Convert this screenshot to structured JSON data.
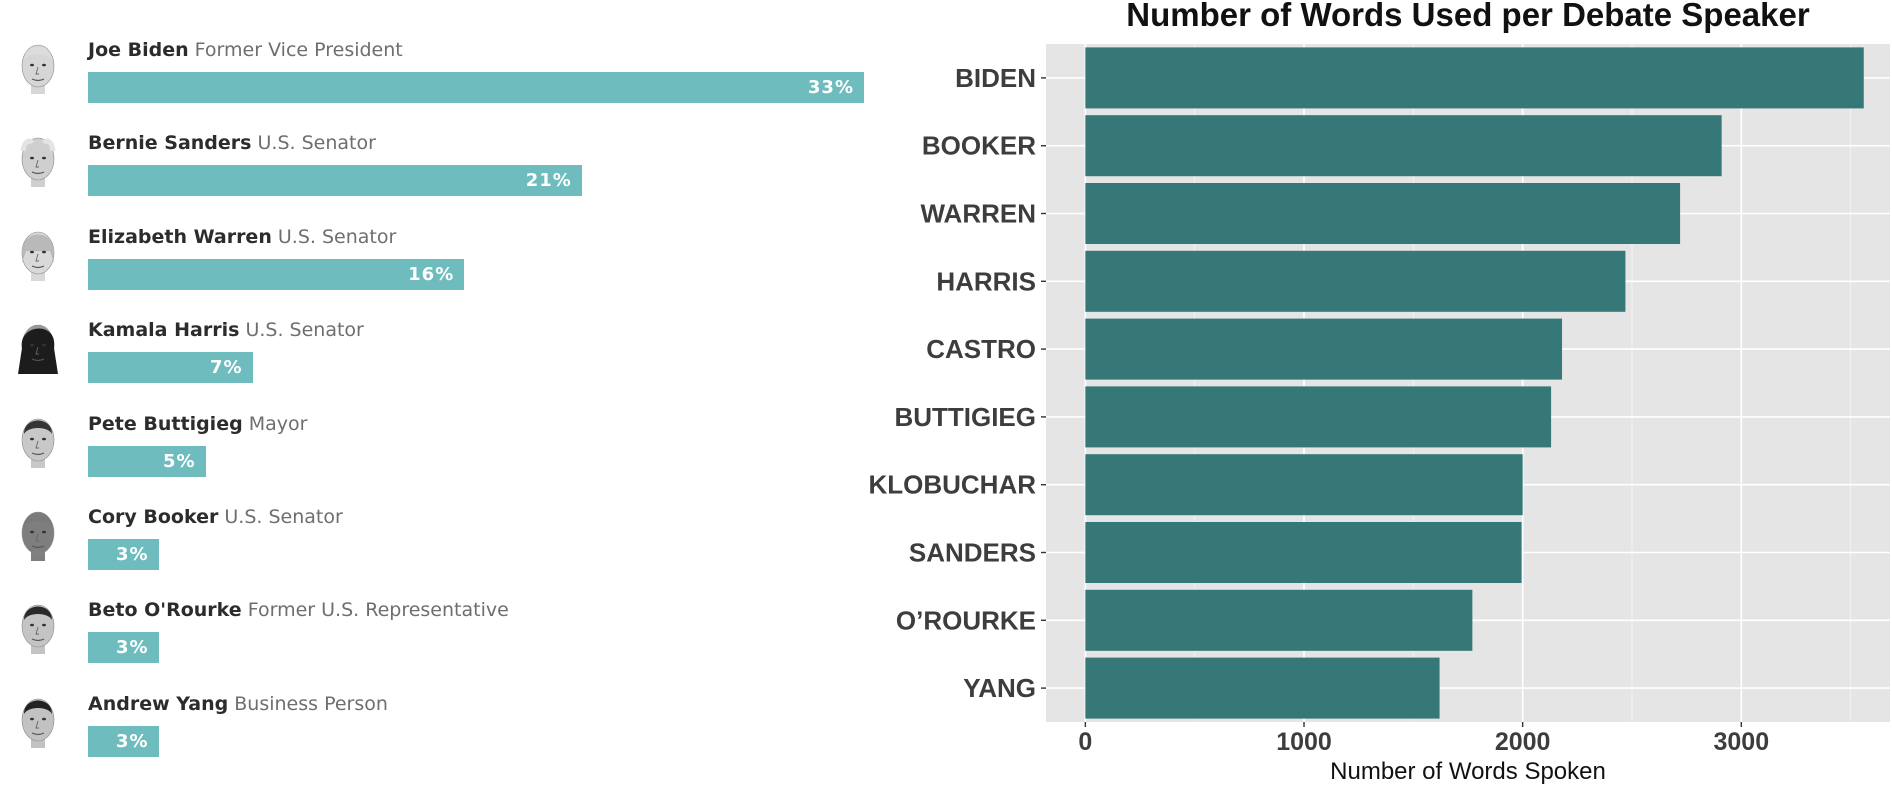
{
  "poll": {
    "candidates": [
      {
        "name": "Joe Biden",
        "role": "Former Vice President",
        "pct_label": "33%",
        "pct": 33,
        "face": "biden"
      },
      {
        "name": "Bernie Sanders",
        "role": "U.S. Senator",
        "pct_label": "21%",
        "pct": 21,
        "face": "sanders"
      },
      {
        "name": "Elizabeth Warren",
        "role": "U.S. Senator",
        "pct_label": "16%",
        "pct": 16,
        "face": "warren"
      },
      {
        "name": "Kamala Harris",
        "role": "U.S. Senator",
        "pct_label": "7%",
        "pct": 7,
        "face": "harris"
      },
      {
        "name": "Pete Buttigieg",
        "role": "Mayor",
        "pct_label": "5%",
        "pct": 5,
        "face": "buttigieg"
      },
      {
        "name": "Cory Booker",
        "role": "U.S. Senator",
        "pct_label": "3%",
        "pct": 3,
        "face": "booker"
      },
      {
        "name": "Beto O'Rourke",
        "role": "Former U.S. Representative",
        "pct_label": "3%",
        "pct": 3,
        "face": "orourke"
      },
      {
        "name": "Andrew Yang",
        "role": "Business Person",
        "pct_label": "3%",
        "pct": 3,
        "face": "yang"
      }
    ]
  },
  "chart_data": {
    "type": "bar",
    "orientation": "horizontal",
    "title": "Number of Words Used per Debate Speaker",
    "xlabel": "Number of Words Spoken",
    "ylabel": "",
    "categories": [
      "BIDEN",
      "BOOKER",
      "WARREN",
      "HARRIS",
      "CASTRO",
      "BUTTIGIEG",
      "KLOBUCHAR",
      "SANDERS",
      "O’ROURKE",
      "YANG"
    ],
    "values": [
      3560,
      2910,
      2720,
      2470,
      2180,
      2130,
      2000,
      1995,
      1770,
      1620
    ],
    "xlim": [
      -180,
      3680
    ],
    "xticks": [
      0,
      1000,
      2000,
      3000
    ],
    "xtick_labels": [
      "0",
      "1000",
      "2000",
      "3000"
    ],
    "grid": true,
    "legend": "none",
    "colors": {
      "bar": "#367877",
      "panel": "#e5e5e5",
      "grid": "#ffffff"
    }
  },
  "colors": {
    "poll_bar": "#6fbcbf"
  }
}
